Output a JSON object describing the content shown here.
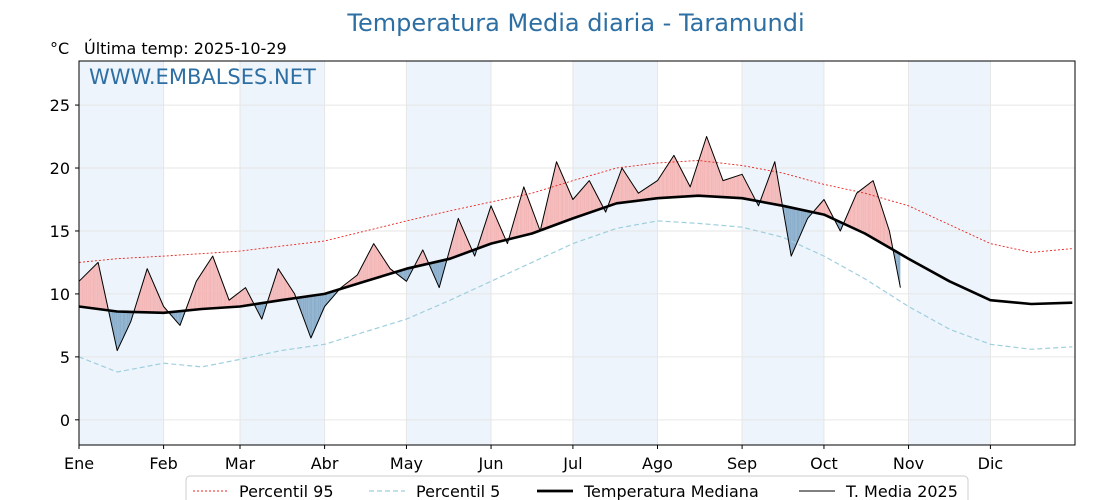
{
  "chart_data": {
    "type": "line",
    "title": "Temperatura Media diaria - Taramundi",
    "unit_label": "°C",
    "last_temp_label": "Última temp: 2025-10-29",
    "watermark": "WWW.EMBALSES.NET",
    "xlabel": "",
    "ylabel": "",
    "x_ticks": [
      "Ene",
      "Feb",
      "Mar",
      "Abr",
      "May",
      "Jun",
      "Jul",
      "Ago",
      "Sep",
      "Oct",
      "Nov",
      "Dic"
    ],
    "x_tick_days": [
      1,
      32,
      60,
      91,
      121,
      152,
      182,
      213,
      244,
      274,
      305,
      335
    ],
    "y_ticks": [
      0,
      5,
      10,
      15,
      20,
      25
    ],
    "ylim": [
      -2,
      28.5
    ],
    "xlim": [
      1,
      366
    ],
    "grid": true,
    "legend_position": "bottom",
    "colors": {
      "p95": "#e8231e",
      "p5": "#9ecfde",
      "median": "#000000",
      "current": "#000000",
      "above_fill": "#f4b7b7",
      "below_fill": "#8aaecb",
      "band": "#eef4fb",
      "title": "#2e6fa3"
    },
    "series": [
      {
        "name": "Percentil 95",
        "key": "p95",
        "x": [
          1,
          15,
          32,
          46,
          60,
          75,
          91,
          106,
          121,
          137,
          152,
          167,
          182,
          198,
          213,
          228,
          244,
          259,
          274,
          289,
          305,
          320,
          335,
          350,
          365
        ],
        "y": [
          12.5,
          12.8,
          13.0,
          13.2,
          13.4,
          13.8,
          14.2,
          15.0,
          15.8,
          16.6,
          17.3,
          18.0,
          19.0,
          20.0,
          20.4,
          20.6,
          20.2,
          19.6,
          18.7,
          18.0,
          17.0,
          15.5,
          14.0,
          13.3,
          13.6
        ]
      },
      {
        "name": "Percentil 5",
        "key": "p5",
        "x": [
          1,
          15,
          32,
          46,
          60,
          75,
          91,
          106,
          121,
          137,
          152,
          167,
          182,
          198,
          213,
          228,
          244,
          259,
          274,
          289,
          305,
          320,
          335,
          350,
          365
        ],
        "y": [
          5.0,
          3.8,
          4.5,
          4.2,
          4.8,
          5.5,
          6.0,
          7.0,
          8.0,
          9.5,
          11.0,
          12.5,
          14.0,
          15.2,
          15.8,
          15.6,
          15.3,
          14.5,
          13.0,
          11.2,
          9.0,
          7.2,
          6.0,
          5.6,
          5.8
        ]
      },
      {
        "name": "Temperatura Mediana",
        "key": "median",
        "x": [
          1,
          15,
          32,
          46,
          60,
          75,
          91,
          106,
          121,
          137,
          152,
          167,
          182,
          198,
          213,
          228,
          244,
          259,
          274,
          289,
          305,
          320,
          335,
          350,
          365
        ],
        "y": [
          9.0,
          8.6,
          8.5,
          8.8,
          9.0,
          9.5,
          10.0,
          11.0,
          12.0,
          12.8,
          14.0,
          14.8,
          16.0,
          17.2,
          17.6,
          17.8,
          17.6,
          17.0,
          16.3,
          14.8,
          12.8,
          11.0,
          9.5,
          9.2,
          9.3
        ]
      },
      {
        "name": "T. Media 2025",
        "key": "current",
        "x": [
          1,
          8,
          15,
          20,
          26,
          32,
          38,
          44,
          50,
          56,
          62,
          68,
          74,
          80,
          86,
          91,
          97,
          103,
          109,
          115,
          121,
          127,
          133,
          140,
          146,
          152,
          158,
          164,
          170,
          176,
          182,
          188,
          194,
          200,
          206,
          213,
          219,
          225,
          231,
          237,
          244,
          250,
          256,
          262,
          268,
          274,
          280,
          286,
          292,
          298,
          302
        ],
        "y": [
          11.0,
          12.5,
          5.5,
          7.8,
          12.0,
          9.0,
          7.5,
          11.0,
          13.0,
          9.5,
          10.5,
          8.0,
          12.0,
          10.0,
          6.5,
          9.0,
          10.5,
          11.5,
          14.0,
          12.0,
          11.0,
          13.5,
          10.5,
          16.0,
          13.0,
          17.0,
          14.0,
          18.5,
          15.0,
          20.5,
          17.5,
          19.0,
          16.5,
          20.0,
          18.0,
          19.0,
          21.0,
          18.5,
          22.5,
          19.0,
          19.5,
          17.0,
          20.5,
          13.0,
          16.0,
          17.5,
          15.0,
          18.0,
          19.0,
          15.0,
          10.5
        ]
      }
    ]
  }
}
